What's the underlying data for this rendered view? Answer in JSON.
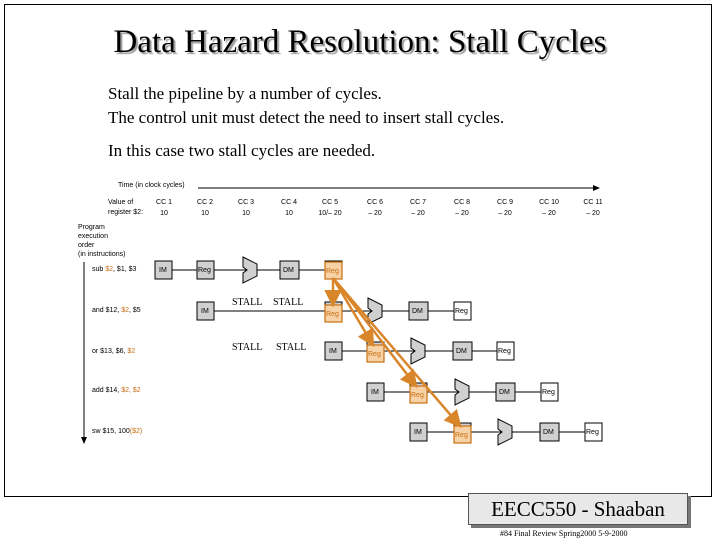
{
  "slide": {
    "title": "Data Hazard Resolution: Stall Cycles",
    "bullets": [
      "Stall the pipeline by a number of cycles.",
      "The control unit must detect the need to insert stall cycles.",
      "In this case two stall cycles are needed."
    ]
  },
  "diagram": {
    "time_label": "Time (in clock cycles)",
    "value_label_1": "Value of",
    "value_label_2": "register $2:",
    "cycles": [
      {
        "cc": "CC 1",
        "value": "10"
      },
      {
        "cc": "CC 2",
        "value": "10"
      },
      {
        "cc": "CC 3",
        "value": "10"
      },
      {
        "cc": "CC 4",
        "value": "10"
      },
      {
        "cc": "CC 5",
        "value": "10/– 20"
      },
      {
        "cc": "CC 6",
        "value": "– 20"
      },
      {
        "cc": "CC 7",
        "value": "– 20"
      },
      {
        "cc": "CC 8",
        "value": "– 20"
      },
      {
        "cc": "CC 9",
        "value": "– 20"
      },
      {
        "cc": "CC 10",
        "value": "– 20"
      },
      {
        "cc": "CC 11",
        "value": "– 20"
      }
    ],
    "order_label": [
      "Program",
      "execution",
      "order",
      "(in instructions)"
    ],
    "instructions": [
      {
        "pre": "sub ",
        "hl": "$2",
        "post": ", $1, $3"
      },
      {
        "pre": "and $12, ",
        "hl": "$2",
        "post": ", $5"
      },
      {
        "pre": "or $13, $6, ",
        "hl": "$2",
        "post": ""
      },
      {
        "pre": "add $14, ",
        "hl": "$2, $2",
        "post": ""
      },
      {
        "pre": "sw $15, 100",
        "hl": "($2)",
        "post": ""
      }
    ],
    "stage_labels": {
      "im": "IM",
      "reg": "Reg",
      "dm": "DM"
    },
    "stall_label": "STALL",
    "colors": {
      "highlight": "#c86e10",
      "arrow": "#d9862a"
    }
  },
  "badge": "EECC550 - Shaaban",
  "footer": "#84 Final Review Spring2000 5-9-2000"
}
